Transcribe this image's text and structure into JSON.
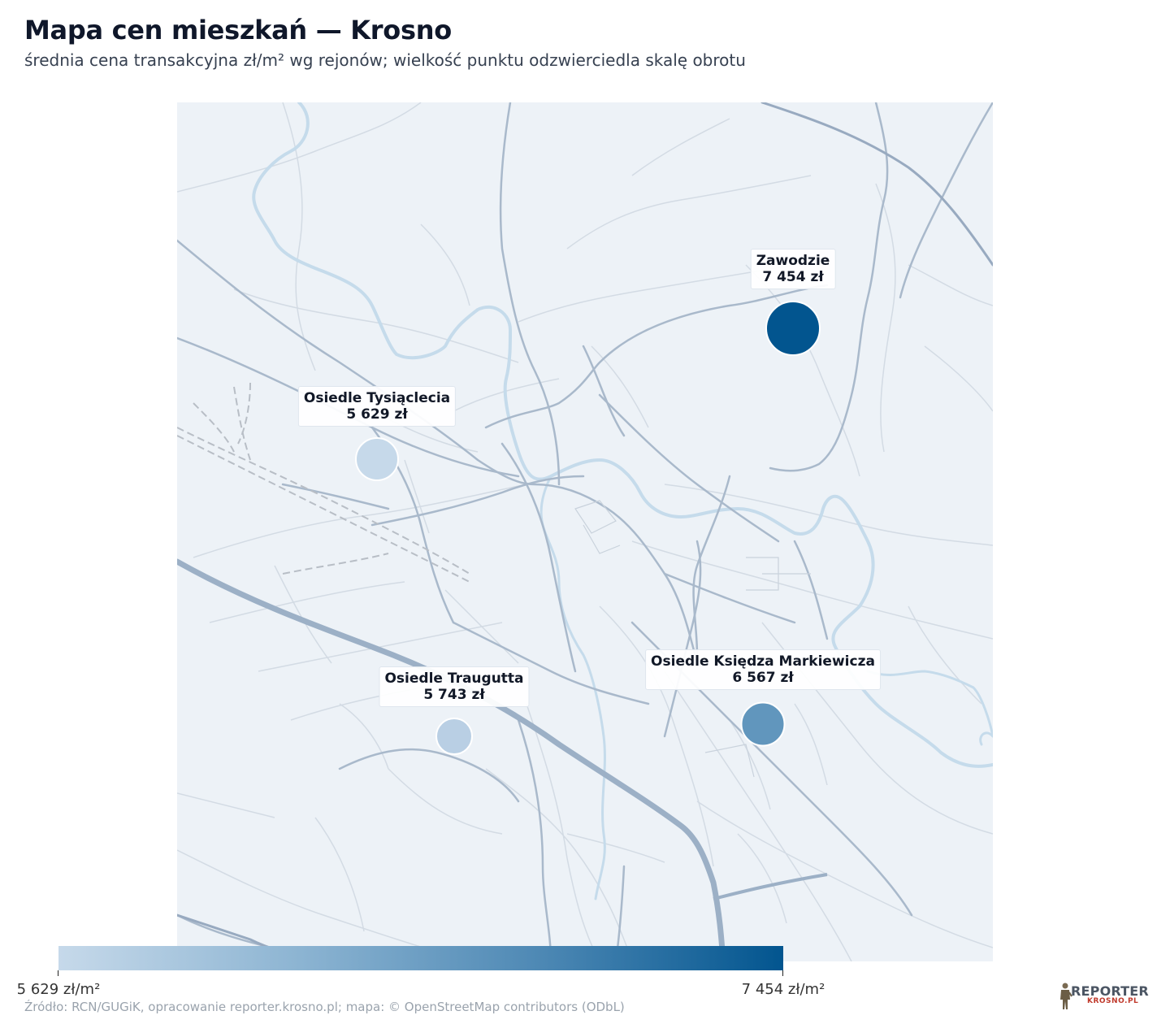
{
  "title": "Mapa cen mieszkań — Krosno",
  "subtitle": "średnia cena transakcyjna zł/m² wg rejonów; wielkość punktu odzwierciedla skalę obrotu",
  "districts": [
    {
      "name": "Zawodzie",
      "price": "7 454 zł",
      "value": 7454,
      "color": "#02558f"
    },
    {
      "name": "Osiedle Tysiąclecia",
      "price": "5 629 zł",
      "value": 5629,
      "color": "#c6d9ea"
    },
    {
      "name": "Osiedle Traugutta",
      "price": "5 743 zł",
      "value": 5743,
      "color": "#b9cfe4"
    },
    {
      "name": "Osiedle Księdza Markiewicza",
      "price": "6 567 zł",
      "value": 6567,
      "color": "#6196bd"
    }
  ],
  "legend": {
    "min_label": "5 629 zł/m²",
    "max_label": "7 454 zł/m²",
    "min_value": 5629,
    "max_value": 7454,
    "color_low": "#c6d9ea",
    "color_high": "#02558f"
  },
  "source": "Źródło: RCN/GUGiK, opracowanie reporter.krosno.pl; mapa: © OpenStreetMap contributors (ODbL)",
  "logo": {
    "line1": "REPORTER",
    "line2": "KROSNO.PL"
  },
  "colors": {
    "map_background": "#edf2f7",
    "river": "#c5dbeb",
    "road": "#a9b9cb",
    "road_minor": "#d3dbe4",
    "railway": "#b8bec6"
  }
}
